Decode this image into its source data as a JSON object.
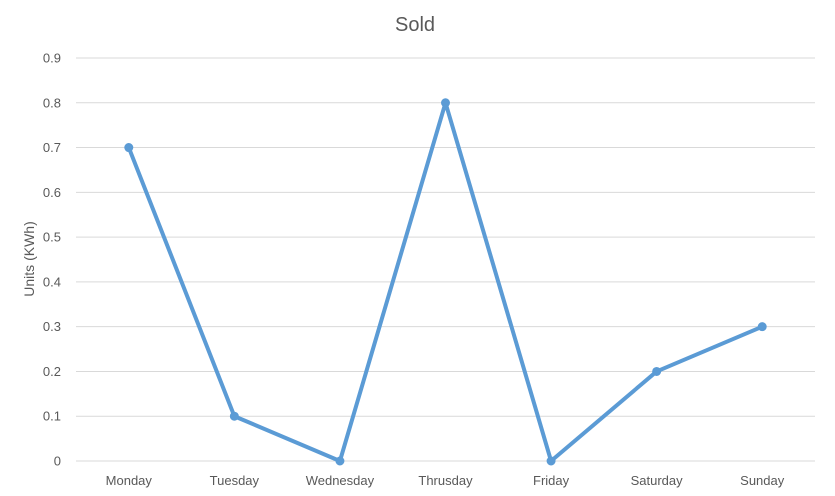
{
  "chart_data": {
    "type": "line",
    "title": "Sold",
    "xlabel": "",
    "ylabel": "Units (KWh)",
    "categories": [
      "Monday",
      "Tuesday",
      "Wednesday",
      "Thrusday",
      "Friday",
      "Saturday",
      "Sunday"
    ],
    "series": [
      {
        "values": [
          0.7,
          0.1,
          0,
          0.8,
          0,
          0.2,
          0.3
        ],
        "color": "#5b9bd5"
      }
    ],
    "ylim": [
      0,
      0.9
    ],
    "yticks": [
      "0",
      "0.1",
      "0.2",
      "0.3",
      "0.4",
      "0.5",
      "0.6",
      "0.7",
      "0.8",
      "0.9"
    ],
    "grid": true,
    "legend": "none",
    "markers": true
  }
}
